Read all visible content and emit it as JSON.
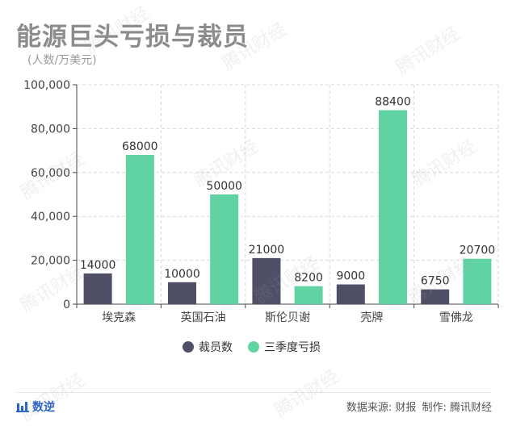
{
  "header": {
    "title": "能源巨头亏损与裁员",
    "unit": "(人数/万美元)"
  },
  "footer": {
    "brand": "数逆",
    "source_label": "数据来源: 财报",
    "maker_label": "制作: 腾讯财经"
  },
  "watermark_text": "腾讯财经",
  "colors": {
    "layoffs": "#4f5068",
    "losses": "#61d2a1",
    "axis": "#444444",
    "grid": "#d9d9d9",
    "brand": "#2a63c8"
  },
  "chart_data": {
    "type": "bar",
    "title": "能源巨头亏损与裁员",
    "subtitle": "(人数/万美元)",
    "categories": [
      "埃克森",
      "英国石油",
      "斯伦贝谢",
      "壳牌",
      "雪佛龙"
    ],
    "series": [
      {
        "name": "裁员数",
        "values": [
          14000,
          10000,
          21000,
          9000,
          6750
        ]
      },
      {
        "name": "三季度亏损",
        "values": [
          68000,
          50000,
          8200,
          88400,
          20700
        ]
      }
    ],
    "ylim": [
      0,
      100000
    ],
    "yticks": [
      "0",
      "20,000",
      "40,000",
      "60,000",
      "80,000",
      "100,000"
    ],
    "grid": true,
    "legend": "bottom-center"
  }
}
